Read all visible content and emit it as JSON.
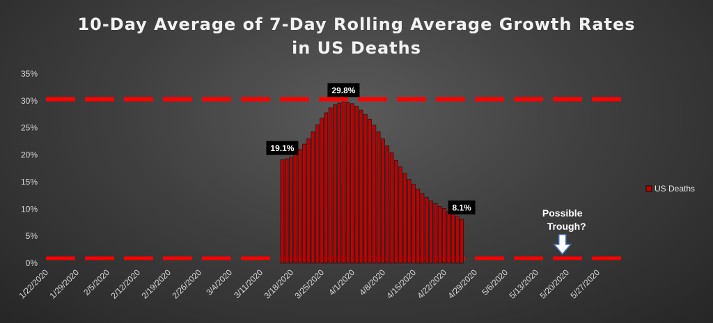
{
  "chart_data": {
    "type": "bar",
    "title_line1": "10-Day Average of 7-Day Rolling Average Growth Rates",
    "title_line2": "in US Deaths",
    "ylim": [
      0,
      35
    ],
    "y_ticks": [
      "0%",
      "5%",
      "10%",
      "15%",
      "20%",
      "25%",
      "30%",
      "35%"
    ],
    "x_range": [
      "2020-01-22",
      "2020-06-03"
    ],
    "x_ticks": [
      "1/22/2020",
      "1/29/2020",
      "2/5/2020",
      "2/12/2020",
      "2/19/2020",
      "2/26/2020",
      "3/4/2020",
      "3/11/2020",
      "3/18/2020",
      "3/25/2020",
      "4/1/2020",
      "4/8/2020",
      "4/15/2020",
      "4/22/2020",
      "4/29/2020",
      "5/6/2020",
      "5/13/2020",
      "5/20/2020",
      "5/27/2020"
    ],
    "series": [
      {
        "name": "US Deaths",
        "color": "#c00000",
        "dates": [
          "2020-03-16",
          "2020-03-17",
          "2020-03-18",
          "2020-03-19",
          "2020-03-20",
          "2020-03-21",
          "2020-03-22",
          "2020-03-23",
          "2020-03-24",
          "2020-03-25",
          "2020-03-26",
          "2020-03-27",
          "2020-03-28",
          "2020-03-29",
          "2020-03-30",
          "2020-03-31",
          "2020-04-01",
          "2020-04-02",
          "2020-04-03",
          "2020-04-04",
          "2020-04-05",
          "2020-04-06",
          "2020-04-07",
          "2020-04-08",
          "2020-04-09",
          "2020-04-10",
          "2020-04-11",
          "2020-04-12",
          "2020-04-13",
          "2020-04-14",
          "2020-04-15",
          "2020-04-16",
          "2020-04-17",
          "2020-04-18",
          "2020-04-19",
          "2020-04-20",
          "2020-04-21",
          "2020-04-22",
          "2020-04-23",
          "2020-04-24",
          "2020-04-25",
          "2020-04-26"
        ],
        "values": [
          19.1,
          19.3,
          19.6,
          20.2,
          21.0,
          22.0,
          23.0,
          24.3,
          25.6,
          26.8,
          27.8,
          28.7,
          29.3,
          29.6,
          29.8,
          29.7,
          29.5,
          29.0,
          28.3,
          27.5,
          26.6,
          25.5,
          24.3,
          23.0,
          21.7,
          20.4,
          19.0,
          17.8,
          16.6,
          15.5,
          14.6,
          13.7,
          12.9,
          12.2,
          11.5,
          11.0,
          10.5,
          10.1,
          9.6,
          9.1,
          8.6,
          8.1
        ]
      }
    ],
    "reference_lines": [
      {
        "value": 30.3,
        "color": "#ff0000",
        "style": "dashed"
      },
      {
        "value": 0.9,
        "color": "#ff0000",
        "style": "dashed"
      }
    ],
    "data_labels": [
      {
        "text": "19.1%",
        "date": "2020-03-16",
        "value": 19.1
      },
      {
        "text": "29.8%",
        "date": "2020-03-30",
        "value": 29.8
      },
      {
        "text": "8.1%",
        "date": "2020-04-26",
        "value": 8.1
      }
    ],
    "annotation": {
      "text_line1": "Possible",
      "text_line2": "Trough?",
      "date": "2020-05-19",
      "value": 0.9
    },
    "legend": {
      "placement": "right",
      "label": "US Deaths"
    },
    "grid": false
  }
}
